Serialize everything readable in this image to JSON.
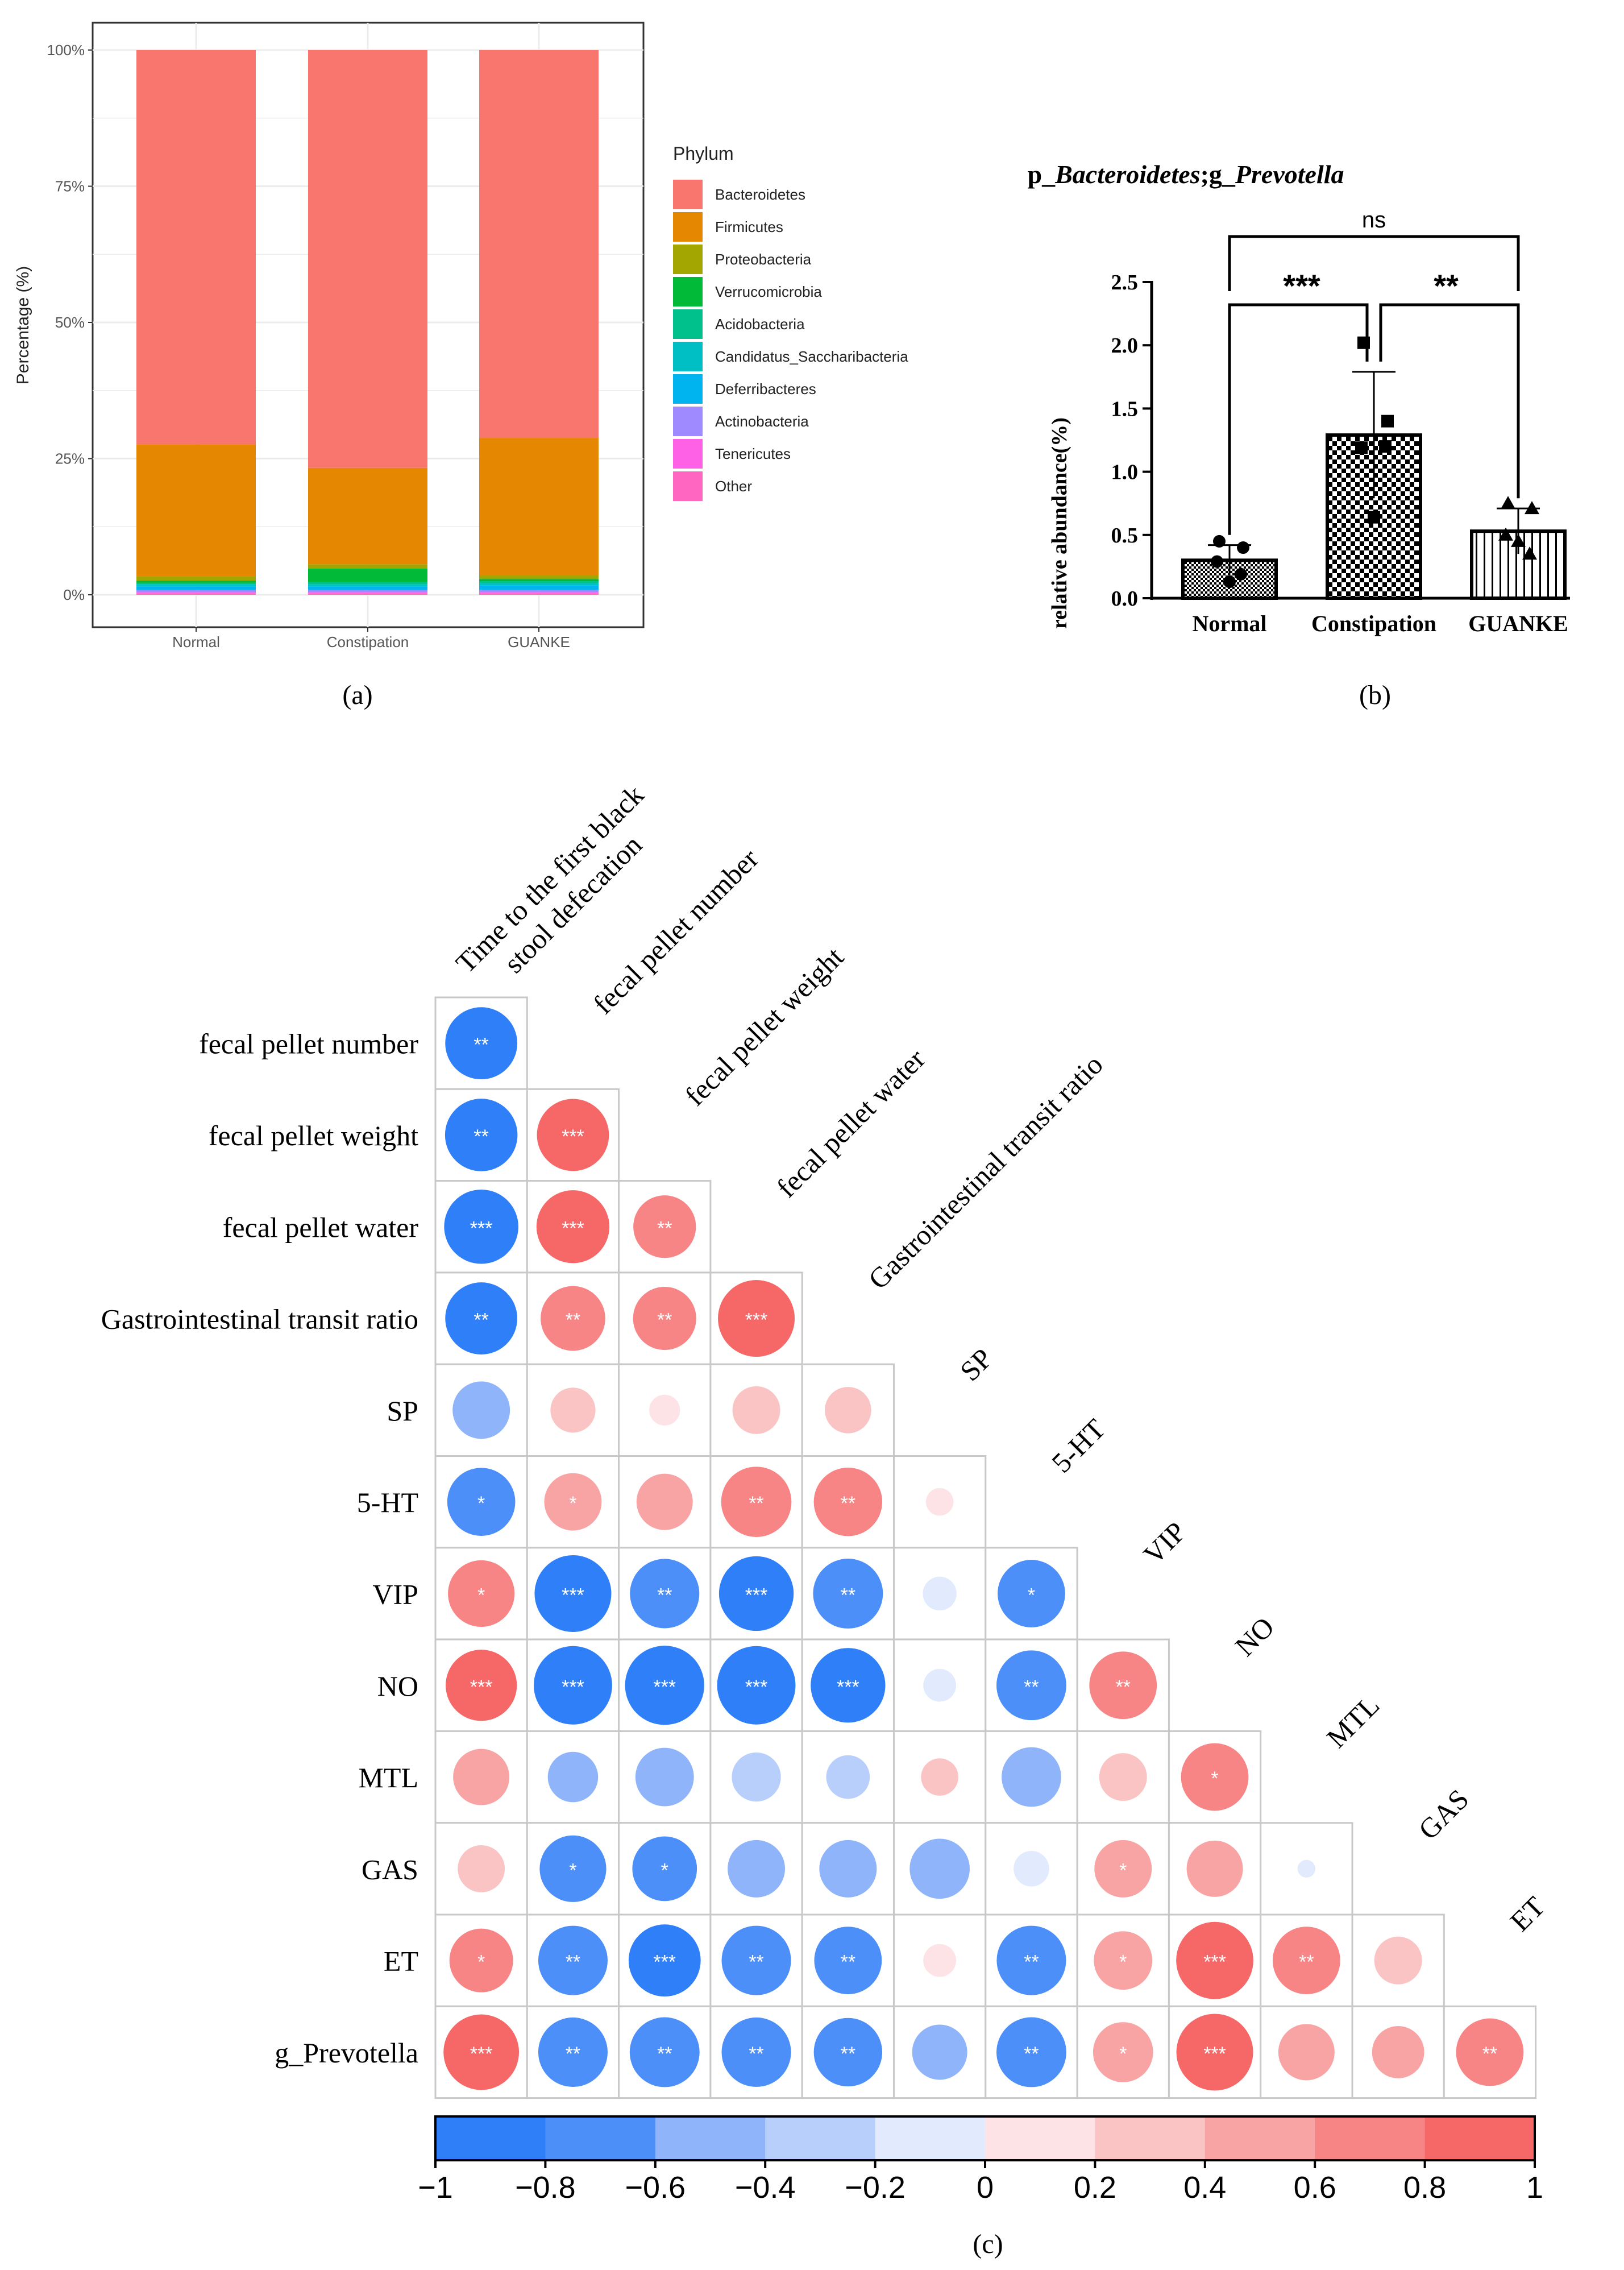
{
  "chart_data": [
    {
      "panel": "(a)",
      "type": "bar",
      "stacked": true,
      "ylabel": "Percentage (%)",
      "xlabel": "",
      "categories": [
        "Normal",
        "Constipation",
        "GUANKE"
      ],
      "yticks": [
        "0%",
        "25%",
        "50%",
        "75%",
        "100%"
      ],
      "ylim": [
        0,
        100
      ],
      "legend_title": "Phylum",
      "legend_position": "right",
      "series": [
        {
          "name": "Other",
          "color": "#ff66c1",
          "values": [
            0.3,
            0.3,
            0.3
          ]
        },
        {
          "name": "Tenericutes",
          "color": "#ff61e6",
          "values": [
            0.2,
            0.2,
            0.2
          ]
        },
        {
          "name": "Actinobacteria",
          "color": "#9f8bff",
          "values": [
            0.4,
            0.4,
            0.4
          ]
        },
        {
          "name": "Deferribacteres",
          "color": "#00b4f0",
          "values": [
            0.6,
            0.6,
            0.8
          ]
        },
        {
          "name": "Candidatus_Saccharibacteria",
          "color": "#00bfc4",
          "values": [
            0.4,
            0.4,
            0.4
          ]
        },
        {
          "name": "Acidobacteria",
          "color": "#00c08b",
          "values": [
            0.3,
            0.5,
            0.4
          ]
        },
        {
          "name": "Verrucomicrobia",
          "color": "#00ba38",
          "values": [
            0.4,
            2.4,
            0.4
          ]
        },
        {
          "name": "Proteobacteria",
          "color": "#a3a500",
          "values": [
            0.8,
            0.8,
            0.7
          ]
        },
        {
          "name": "Firmicutes",
          "color": "#e58700",
          "values": [
            24.2,
            17.7,
            25.2
          ]
        },
        {
          "name": "Bacteroidetes",
          "color": "#f8766d",
          "values": [
            72.4,
            76.7,
            71.2
          ]
        }
      ],
      "legend_order": [
        "Bacteroidetes",
        "Firmicutes",
        "Proteobacteria",
        "Verrucomicrobia",
        "Acidobacteria",
        "Candidatus_Saccharibacteria",
        "Deferribacteres",
        "Actinobacteria",
        "Tenericutes",
        "Other"
      ],
      "caption": "(a)"
    },
    {
      "panel": "(b)",
      "type": "bar",
      "title_parts": [
        "p_",
        "Bacteroidetes",
        ";g_",
        "Prevotella"
      ],
      "ylabel": "relative abundance(%)",
      "categories": [
        "Normal",
        "Constipation",
        "GUANKE"
      ],
      "values": [
        0.3,
        1.29,
        0.53
      ],
      "sd": [
        0.12,
        0.5,
        0.18
      ],
      "yticks": [
        "0.0",
        "0.5",
        "1.0",
        "1.5",
        "2.0",
        "2.5"
      ],
      "ylim": [
        0,
        2.5
      ],
      "points": [
        [
          0.45,
          0.4,
          0.29,
          0.19,
          0.13
        ],
        [
          2.02,
          1.4,
          1.19,
          1.2,
          0.64
        ],
        [
          0.75,
          0.71,
          0.5,
          0.35,
          0.45
        ]
      ],
      "markers": [
        "circle",
        "square",
        "triangle"
      ],
      "significance": [
        {
          "pair": [
            0,
            1
          ],
          "label": "***",
          "y": 2.33
        },
        {
          "pair": [
            1,
            2
          ],
          "label": "**",
          "y": 2.33
        },
        {
          "pair": [
            0,
            2
          ],
          "label": "ns",
          "y": 2.88
        }
      ],
      "caption": "(b)"
    },
    {
      "panel": "(c)",
      "type": "heatmap",
      "style": "lower-triangle circles",
      "column_labels": [
        "Time to the first black stool defecation",
        "fecal pellet number",
        "fecal pellet weight",
        "fecal pellet water",
        "Gastrointestinal transit ratio",
        "SP",
        "5-HT",
        "VIP",
        "NO",
        "MTL",
        "GAS",
        "ET"
      ],
      "row_labels": [
        "fecal pellet number",
        "fecal pellet weight",
        "fecal pellet water",
        "Gastrointestinal transit ratio",
        "SP",
        "5-HT",
        "VIP",
        "NO",
        "MTL",
        "GAS",
        "ET",
        "g_Prevotella"
      ],
      "values": [
        [
          -0.82
        ],
        [
          -0.83,
          0.82
        ],
        [
          -0.87,
          0.84,
          0.62
        ],
        [
          -0.82,
          0.66,
          0.63,
          0.93
        ],
        [
          -0.52,
          0.32,
          0.15,
          0.36,
          0.34
        ],
        [
          -0.73,
          0.52,
          0.5,
          0.78,
          0.74,
          0.12
        ],
        [
          0.7,
          -0.93,
          -0.76,
          -0.88,
          -0.77,
          -0.18,
          -0.72
        ],
        [
          0.8,
          -0.97,
          -0.99,
          -0.97,
          -0.88,
          -0.17,
          -0.77,
          0.72
        ],
        [
          0.5,
          -0.4,
          -0.54,
          -0.38,
          -0.3,
          0.22,
          -0.56,
          0.36,
          0.72
        ],
        [
          0.35,
          -0.7,
          -0.66,
          -0.52,
          -0.52,
          -0.57,
          -0.2,
          0.52,
          0.5,
          -0.05
        ],
        [
          0.64,
          -0.76,
          -0.82,
          -0.76,
          -0.72,
          0.17,
          -0.76,
          0.54,
          0.94,
          0.72,
          0.36
        ],
        [
          0.9,
          -0.76,
          -0.77,
          -0.76,
          -0.74,
          -0.48,
          -0.77,
          0.57,
          0.93,
          0.5,
          0.43,
          0.72
        ]
      ],
      "stars": [
        [
          "**"
        ],
        [
          "**",
          "***"
        ],
        [
          "***",
          "***",
          "**"
        ],
        [
          "**",
          "**",
          "**",
          "***"
        ],
        [
          "",
          "",
          "",
          "",
          ""
        ],
        [
          "*",
          "*",
          "",
          "**",
          "**",
          ""
        ],
        [
          "*",
          "***",
          "**",
          "***",
          "**",
          "",
          "*"
        ],
        [
          "***",
          "***",
          "***",
          "***",
          "***",
          "",
          "**",
          "**"
        ],
        [
          "",
          "",
          "",
          "",
          "",
          "",
          "",
          "",
          "*"
        ],
        [
          "",
          "*",
          "*",
          "",
          "",
          "",
          "",
          "*",
          "",
          ""
        ],
        [
          "*",
          "**",
          "***",
          "**",
          "**",
          "",
          "**",
          "*",
          "***",
          "**",
          ""
        ],
        [
          "***",
          "**",
          "**",
          "**",
          "**",
          "",
          "**",
          "*",
          "***",
          "",
          "",
          "**"
        ]
      ],
      "colorbar_ticks": [
        "−1",
        "−0.8",
        "−0.6",
        "−0.4",
        "−0.2",
        "0",
        "0.2",
        "0.4",
        "0.6",
        "0.8",
        "1"
      ],
      "colorbar_colors": [
        "#2f80f8",
        "#4c8ff8",
        "#8fb4fa",
        "#b8cffb",
        "#e1ebfd",
        "#fde3e5",
        "#fbc4c4",
        "#f9a4a4",
        "#f78586",
        "#f66767"
      ],
      "caption": "(c)"
    }
  ]
}
